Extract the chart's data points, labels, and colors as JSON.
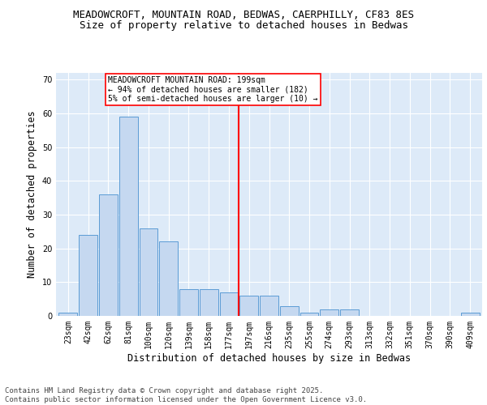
{
  "title1": "MEADOWCROFT, MOUNTAIN ROAD, BEDWAS, CAERPHILLY, CF83 8ES",
  "title2": "Size of property relative to detached houses in Bedwas",
  "xlabel": "Distribution of detached houses by size in Bedwas",
  "ylabel": "Number of detached properties",
  "categories": [
    "23sqm",
    "42sqm",
    "62sqm",
    "81sqm",
    "100sqm",
    "120sqm",
    "139sqm",
    "158sqm",
    "177sqm",
    "197sqm",
    "216sqm",
    "235sqm",
    "255sqm",
    "274sqm",
    "293sqm",
    "313sqm",
    "332sqm",
    "351sqm",
    "370sqm",
    "390sqm",
    "409sqm"
  ],
  "values": [
    1,
    24,
    36,
    59,
    26,
    22,
    8,
    8,
    7,
    6,
    6,
    3,
    1,
    2,
    2,
    0,
    0,
    0,
    0,
    0,
    1
  ],
  "bar_color": "#c5d8f0",
  "bar_edge_color": "#5b9bd5",
  "vline_color": "red",
  "annotation_text": "MEADOWCROFT MOUNTAIN ROAD: 199sqm\n← 94% of detached houses are smaller (182)\n5% of semi-detached houses are larger (10) →",
  "annotation_box_color": "white",
  "annotation_box_edge": "red",
  "ylim": [
    0,
    72
  ],
  "yticks": [
    0,
    10,
    20,
    30,
    40,
    50,
    60,
    70
  ],
  "footnote": "Contains HM Land Registry data © Crown copyright and database right 2025.\nContains public sector information licensed under the Open Government Licence v3.0.",
  "background_color": "#ddeaf8",
  "fig_background": "#ffffff",
  "title1_fontsize": 9,
  "title2_fontsize": 9,
  "axis_label_fontsize": 8.5,
  "tick_fontsize": 7,
  "footnote_fontsize": 6.5,
  "vline_index": 9
}
